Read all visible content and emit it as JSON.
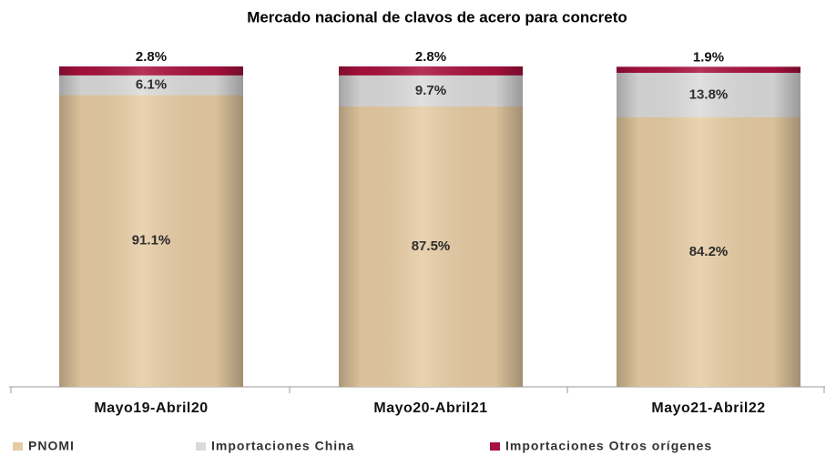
{
  "chart_data": {
    "type": "stacked-bar",
    "title": "Mercado nacional de clavos de acero para concreto",
    "categories": [
      "Mayo19-Abril20",
      "Mayo20-Abril21",
      "Mayo21-Abril22"
    ],
    "series": [
      {
        "name": "PNOMI",
        "color": "#e6cba3",
        "values": [
          91.1,
          87.5,
          84.2
        ],
        "value_labels": [
          "91.1%",
          "87.5%",
          "84.2%"
        ]
      },
      {
        "name": "Importaciones China",
        "color": "#dadada",
        "values": [
          6.1,
          9.7,
          13.8
        ],
        "value_labels": [
          "6.1%",
          "9.7%",
          "13.8%"
        ]
      },
      {
        "name": "Importaciones Otros orígenes",
        "color": "#a8113e",
        "values": [
          2.8,
          2.8,
          1.9
        ],
        "value_labels": [
          "2.8%",
          "2.8%",
          "1.9%"
        ]
      }
    ],
    "ylim": [
      0,
      100
    ]
  }
}
